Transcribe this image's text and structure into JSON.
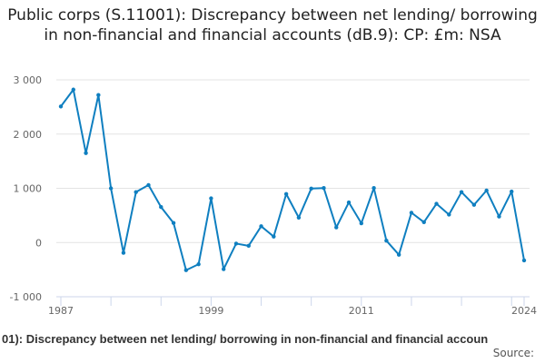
{
  "chart_data": {
    "type": "line",
    "title": "Public corps (S.11001): Discrepancy between net lending/ borrowing in non-financial and financial accounts (dB.9): CP: £m: NSA",
    "xlabel": "",
    "ylabel": "",
    "ylim": [
      -1000,
      3000
    ],
    "yticks": [
      -1000,
      0,
      1000,
      2000,
      3000
    ],
    "ytick_labels": [
      "-1 000",
      "0",
      "1 000",
      "2 000",
      "3 000"
    ],
    "xticks": [
      1987,
      1999,
      2011,
      2024
    ],
    "xtick_labels": [
      "1987",
      "1999",
      "2011",
      "2024"
    ],
    "grid": true,
    "color": "#0f7fc0",
    "x": [
      1987,
      1988,
      1989,
      1990,
      1991,
      1992,
      1993,
      1994,
      1995,
      1996,
      1997,
      1998,
      1999,
      2000,
      2001,
      2002,
      2003,
      2004,
      2005,
      2006,
      2007,
      2008,
      2009,
      2010,
      2011,
      2012,
      2013,
      2014,
      2015,
      2016,
      2017,
      2018,
      2019,
      2020,
      2021,
      2022,
      2023,
      2024
    ],
    "values": [
      2510,
      2820,
      1650,
      2720,
      1000,
      -190,
      930,
      1060,
      655,
      360,
      -510,
      -400,
      815,
      -490,
      -20,
      -60,
      300,
      110,
      895,
      460,
      995,
      1005,
      280,
      740,
      355,
      1005,
      35,
      -225,
      550,
      375,
      715,
      515,
      930,
      695,
      960,
      480,
      940,
      -330
    ]
  },
  "footer": {
    "caption": "01): Discrepancy between net lending/ borrowing in non-financial and financial accoun",
    "source": "Source:"
  }
}
